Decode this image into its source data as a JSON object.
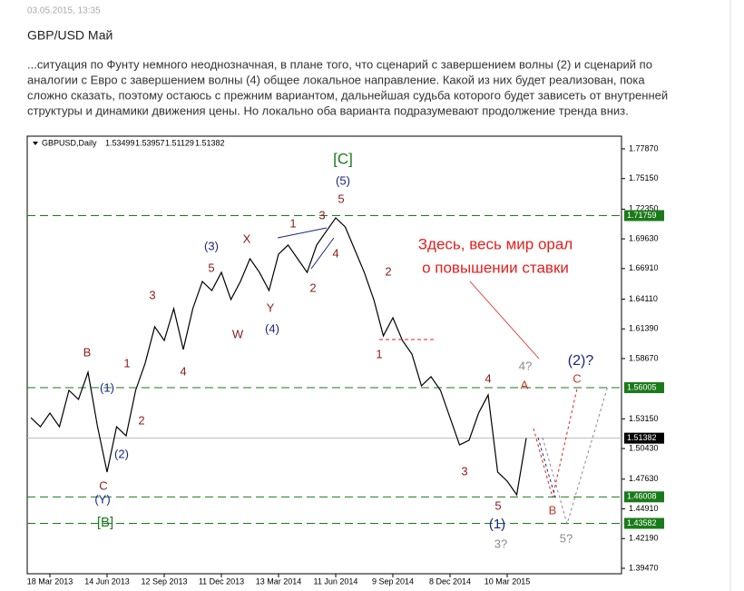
{
  "header": {
    "date": "03.05.2015, 13:35",
    "title": "GBP/USD Май"
  },
  "text": [
    "...ситуация по Фунту немного неоднозначная, в плане того, что сценарий с завершением волны (2) и сценарий по",
    "аналогии с Евро с завершением волны (4) общее локальное направление. Какой из них будет реализован, пока",
    "сложно сказать, поэтому остаюсь с прежним вариантом, дальнейшая судьба которого будет зависеть от внутренней",
    "структуры и динамики движения цены. Но локально оба варианта подразумевают продолжение тренда вниз."
  ],
  "chart_data": {
    "type": "line",
    "symbol": "GBPUSD,Daily",
    "ohlc": [
      1.53499,
      1.53957,
      1.51129,
      1.51382
    ],
    "categories": [
      null,
      null,
      "18 Mar 2013",
      null,
      null,
      null,
      null,
      null,
      "14 Jun 2013",
      null,
      null,
      null,
      null,
      null,
      "12 Sep 2013",
      null,
      null,
      null,
      null,
      null,
      "11 Dec 2013",
      null,
      null,
      null,
      null,
      null,
      "13 Mar 2014",
      null,
      null,
      null,
      null,
      null,
      "11 Jun 2014",
      null,
      null,
      null,
      null,
      null,
      "9 Sep 2014",
      null,
      null,
      null,
      null,
      null,
      "8 Dec 2014",
      null,
      null,
      null,
      null,
      null,
      "10 Mar 2015",
      null,
      null
    ],
    "series": [
      {
        "name": "GBPUSD",
        "color": "#000000",
        "values": [
          1.5326,
          1.5243,
          1.5368,
          1.5243,
          1.5576,
          1.5493,
          1.5742,
          1.5243,
          1.4828,
          1.5243,
          1.516,
          1.5576,
          1.5825,
          1.6158,
          1.6033,
          1.6324,
          1.595,
          1.6324,
          1.6573,
          1.649,
          1.6656,
          1.6407,
          1.6573,
          1.6781,
          1.6656,
          1.649,
          1.6823,
          1.6906,
          1.6781,
          1.6656,
          1.6906,
          1.7031,
          1.7155,
          1.7072,
          1.6864,
          1.6656,
          1.6407,
          1.6075,
          1.6241,
          1.6033,
          1.5908,
          1.5617,
          1.5701,
          1.5576,
          1.5326,
          1.5077,
          1.5119,
          1.5368,
          1.5534,
          1.4828,
          1.4745,
          1.462,
          1.51382
        ]
      }
    ],
    "ylim": [
      1.3897,
      1.7903
    ],
    "yticks": [
      {
        "value": 1.7787,
        "label": "1.77870"
      },
      {
        "value": 1.7515,
        "label": "1.75150"
      },
      {
        "value": 1.7235,
        "label": "1.72350"
      },
      {
        "value": 1.6963,
        "label": "1.69630"
      },
      {
        "value": 1.6691,
        "label": "1.66910"
      },
      {
        "value": 1.6411,
        "label": "1.64110"
      },
      {
        "value": 1.6139,
        "label": "1.61390"
      },
      {
        "value": 1.5867,
        "label": "1.58670"
      },
      {
        "value": 1.5315,
        "label": "1.53150"
      },
      {
        "value": 1.5043,
        "label": "1.50430"
      },
      {
        "value": 1.4763,
        "label": "1.47630"
      },
      {
        "value": 1.4491,
        "label": "1.44910"
      },
      {
        "value": 1.4219,
        "label": "1.42190"
      },
      {
        "value": 1.3947,
        "label": "1.39470"
      }
    ],
    "levels": [
      1.71759,
      1.56005,
      1.46008,
      1.43582
    ],
    "level_color": "#1a7a1a",
    "current": 1.51382,
    "annotations": [
      {
        "text": "[C]",
        "color": "#1a7a1a"
      },
      {
        "text": "(5)",
        "color": "#1a237e"
      },
      {
        "text": "5",
        "color": "#8b1a1a"
      },
      {
        "text": "3",
        "color": "#8b1a1a"
      },
      {
        "text": "1",
        "color": "#8b1a1a"
      },
      {
        "text": "4",
        "color": "#8b1a1a"
      },
      {
        "text": "2",
        "color": "#8b1a1a"
      },
      {
        "text": "X",
        "color": "#8b1a1a"
      },
      {
        "text": "(3)",
        "color": "#1a237e"
      },
      {
        "text": "5",
        "color": "#8b1a1a"
      },
      {
        "text": "Y",
        "color": "#8b1a1a"
      },
      {
        "text": "(4)",
        "color": "#1a237e"
      },
      {
        "text": "W",
        "color": "#8b1a1a"
      },
      {
        "text": "3",
        "color": "#8b1a1a"
      },
      {
        "text": "4",
        "color": "#8b1a1a"
      },
      {
        "text": "1",
        "color": "#8b1a1a"
      },
      {
        "text": "(1)",
        "color": "#1a237e"
      },
      {
        "text": "2",
        "color": "#8b1a1a"
      },
      {
        "text": "B",
        "color": "#8b1a1a"
      },
      {
        "text": "(2)",
        "color": "#1a237e"
      },
      {
        "text": "C",
        "color": "#8b1a1a"
      },
      {
        "text": "(Y)",
        "color": "#1a237e"
      },
      {
        "text": "[B]",
        "color": "#1a7a1a"
      },
      {
        "text": "2",
        "color": "#8b1a1a"
      },
      {
        "text": "1",
        "color": "#8b1a1a"
      },
      {
        "text": "3",
        "color": "#8b1a1a"
      },
      {
        "text": "4",
        "color": "#8b1a1a"
      },
      {
        "text": "5",
        "color": "#8b1a1a"
      },
      {
        "text": "(1)",
        "color": "#1a237e"
      },
      {
        "text": "3?",
        "color": "#888888"
      },
      {
        "text": "A",
        "color": "#c0392b"
      },
      {
        "text": "4?",
        "color": "#888888"
      },
      {
        "text": "(2)?",
        "color": "#1a237e"
      },
      {
        "text": "C",
        "color": "#c0392b"
      },
      {
        "text": "B",
        "color": "#c0392b"
      },
      {
        "text": "5?",
        "color": "#888888"
      },
      {
        "text": "Здесь, весь мир орал",
        "color": "#e02020"
      },
      {
        "text": "о повышении ставки",
        "color": "#e02020"
      }
    ]
  }
}
